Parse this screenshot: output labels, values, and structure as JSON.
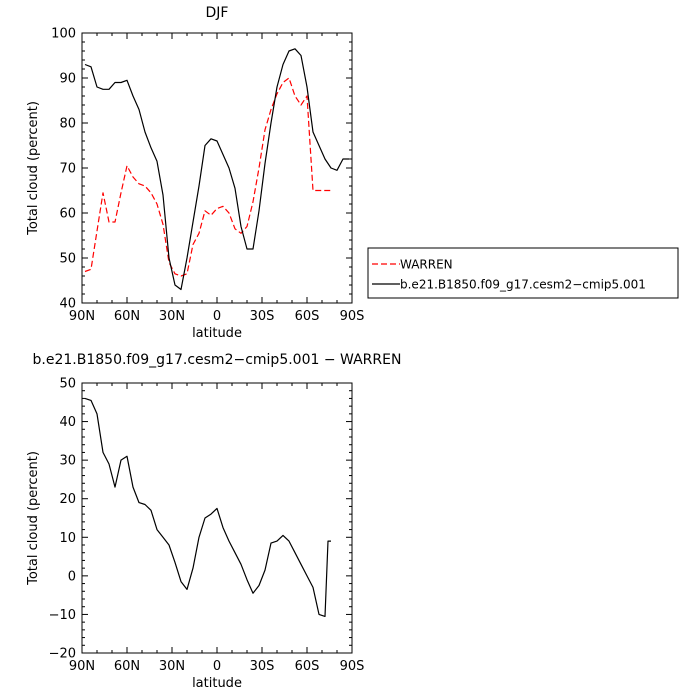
{
  "chart_data": [
    {
      "type": "line",
      "title": "DJF",
      "xlabel": "latitude",
      "ylabel": "Total cloud (percent)",
      "xlim": [
        90,
        -90
      ],
      "ylim": [
        40,
        100
      ],
      "x_ticks": [
        "90N",
        "60N",
        "30N",
        "0",
        "30S",
        "60S",
        "90S"
      ],
      "y_ticks": [
        "40",
        "50",
        "60",
        "70",
        "80",
        "90",
        "100"
      ],
      "legend_position": "right",
      "series": [
        {
          "name": "WARREN",
          "color": "#ff0000",
          "dash": "dashed",
          "x": [
            88,
            84,
            80,
            76,
            72,
            68,
            64,
            60,
            56,
            52,
            48,
            44,
            40,
            36,
            32,
            28,
            24,
            20,
            16,
            12,
            8,
            4,
            0,
            -4,
            -8,
            -12,
            -16,
            -20,
            -24,
            -28,
            -32,
            -36,
            -40,
            -44,
            -48,
            -52,
            -56,
            -60,
            -64,
            -68,
            -72,
            -74,
            -76
          ],
          "y": [
            47,
            47.5,
            56,
            64.5,
            58,
            58,
            64.5,
            70.5,
            68,
            66.5,
            66,
            64.5,
            62,
            57.5,
            49,
            46.5,
            46,
            46.5,
            53,
            55.5,
            60.5,
            59.5,
            61,
            61.5,
            60,
            56.5,
            55.5,
            57,
            62.5,
            70,
            78.5,
            83,
            86.5,
            89,
            90,
            86,
            84,
            86,
            65,
            65,
            65,
            65,
            65
          ]
        },
        {
          "name": "b.e21.B1850.f09_g17.cesm2−cmip5.001",
          "color": "#000000",
          "dash": "solid",
          "x": [
            88,
            84,
            80,
            76,
            72,
            68,
            64,
            60,
            56,
            52,
            48,
            44,
            40,
            36,
            32,
            28,
            24,
            20,
            16,
            12,
            8,
            4,
            0,
            -4,
            -8,
            -12,
            -16,
            -20,
            -24,
            -28,
            -32,
            -36,
            -40,
            -44,
            -48,
            -52,
            -56,
            -60,
            -64,
            -68,
            -72,
            -76,
            -80,
            -84,
            -88
          ],
          "y": [
            93,
            92.5,
            88,
            87.5,
            87.5,
            89,
            89,
            89.5,
            86,
            83,
            78,
            74.5,
            71.5,
            64,
            50,
            44,
            43,
            50,
            58,
            66,
            75,
            76.5,
            76,
            73,
            70,
            65.5,
            57,
            52,
            52,
            60.5,
            71,
            80,
            88,
            93,
            96,
            96.5,
            95,
            88,
            78,
            75,
            72,
            70,
            69.5,
            72,
            72
          ]
        }
      ]
    },
    {
      "type": "line",
      "title": "b.e21.B1850.f09_g17.cesm2−cmip5.001 − WARREN",
      "xlabel": "latitude",
      "ylabel": "Total cloud (percent)",
      "xlim": [
        90,
        -90
      ],
      "ylim": [
        -20,
        50
      ],
      "x_ticks": [
        "90N",
        "60N",
        "30N",
        "0",
        "30S",
        "60S",
        "90S"
      ],
      "y_ticks": [
        "−20",
        "−10",
        "0",
        "10",
        "20",
        "30",
        "40",
        "50"
      ],
      "series": [
        {
          "color": "#000000",
          "dash": "solid",
          "x": [
            88,
            84,
            80,
            76,
            72,
            68,
            64,
            60,
            56,
            52,
            48,
            44,
            40,
            36,
            32,
            28,
            24,
            20,
            16,
            12,
            8,
            4,
            0,
            -4,
            -8,
            -12,
            -16,
            -20,
            -24,
            -28,
            -32,
            -36,
            -40,
            -44,
            -48,
            -52,
            -56,
            -60,
            -64,
            -68,
            -72,
            -74,
            -76
          ],
          "y": [
            46,
            45.5,
            42,
            32,
            29,
            23,
            30,
            31,
            23,
            19,
            18.5,
            17,
            12,
            10,
            8,
            3.5,
            -1.5,
            -3.5,
            2,
            10,
            15,
            16,
            17.5,
            12.5,
            9,
            6,
            3,
            -1,
            -4.5,
            -2.5,
            1.5,
            8.5,
            9,
            10.5,
            9,
            6,
            3,
            0,
            -3,
            -10,
            -10.5,
            9,
            9
          ]
        }
      ]
    }
  ]
}
